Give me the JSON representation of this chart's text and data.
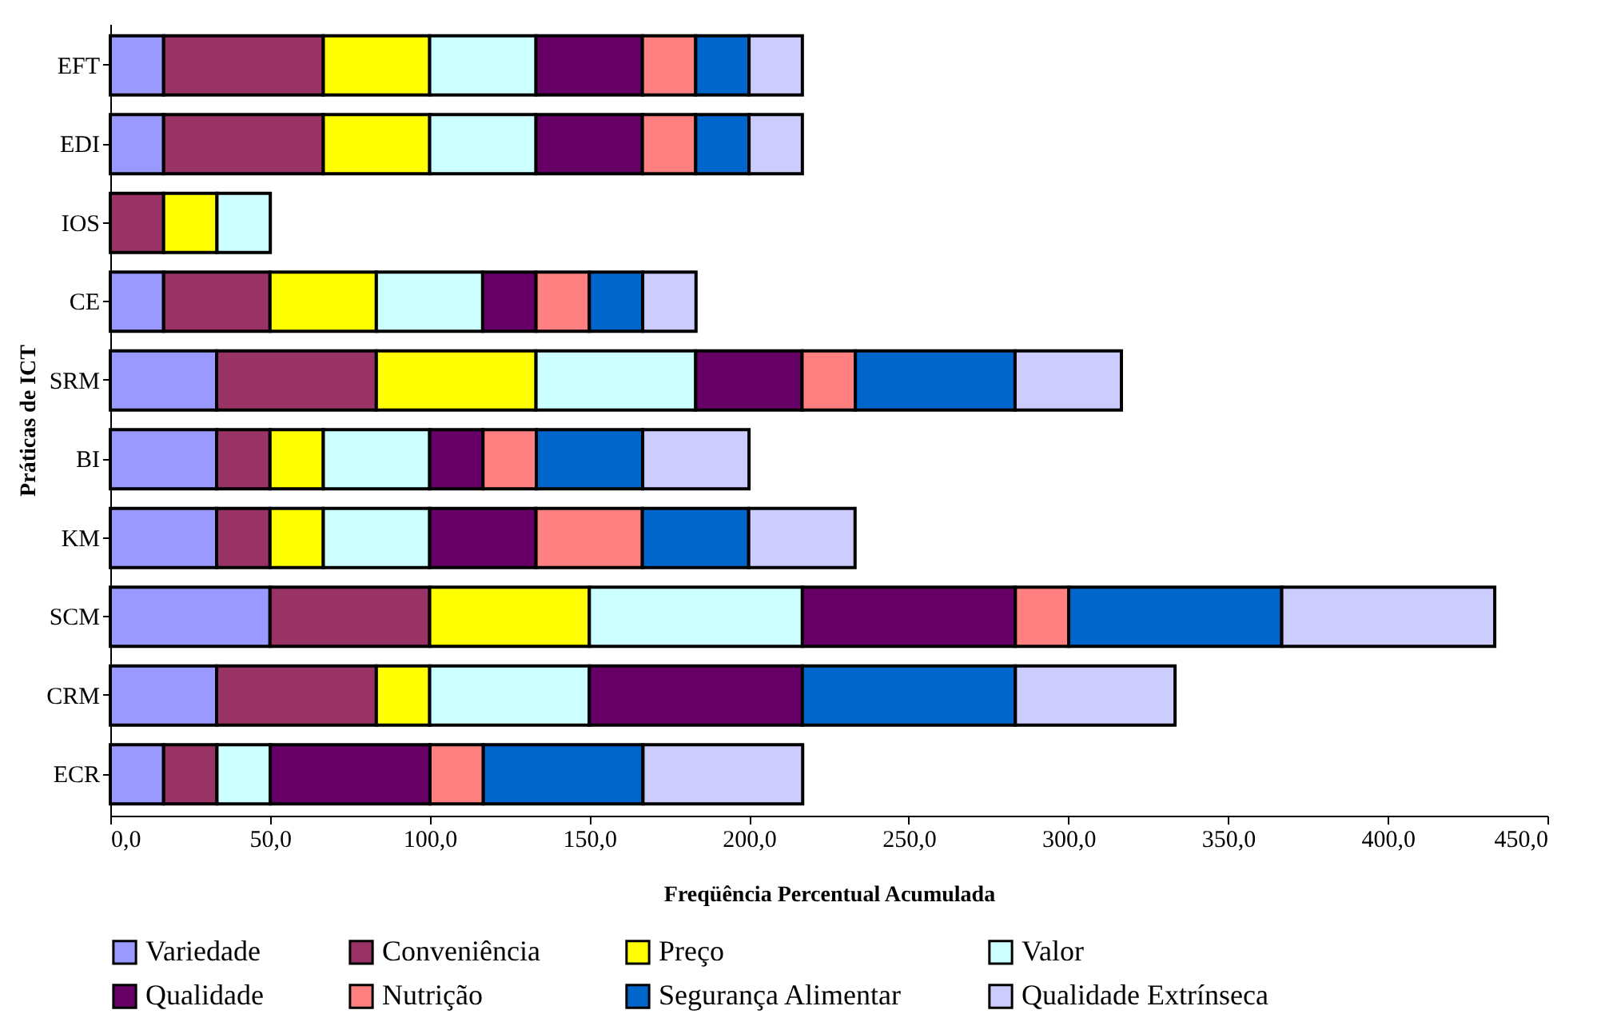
{
  "chart_data": {
    "type": "bar",
    "orientation": "horizontal",
    "stacked": true,
    "xlabel": "Freqüência Percentual Acumulada",
    "ylabel": "Práticas de ICT",
    "categories": [
      "EFT",
      "EDI",
      "IOS",
      "CE",
      "SRM",
      "BI",
      "KM",
      "SCM",
      "CRM",
      "ECR"
    ],
    "series": [
      {
        "name": "Variedade",
        "color": "#9999ff",
        "values": [
          16.7,
          16.7,
          0,
          16.7,
          33.3,
          33.3,
          33.3,
          50,
          33.3,
          16.7
        ]
      },
      {
        "name": "Conveniência",
        "color": "#993366",
        "values": [
          50,
          50,
          16.7,
          33.3,
          50,
          16.7,
          16.7,
          50,
          50,
          16.7
        ]
      },
      {
        "name": "Preço",
        "color": "#ffff00",
        "values": [
          33.3,
          33.3,
          16.7,
          33.3,
          50,
          16.7,
          16.7,
          50,
          16.7,
          0
        ]
      },
      {
        "name": "Valor",
        "color": "#ccffff",
        "values": [
          33.3,
          33.3,
          16.7,
          33.3,
          50,
          33.3,
          33.3,
          66.7,
          50,
          16.7
        ]
      },
      {
        "name": "Qualidade",
        "color": "#660066",
        "values": [
          33.3,
          33.3,
          0,
          16.7,
          33.3,
          16.7,
          33.3,
          66.7,
          66.7,
          50
        ]
      },
      {
        "name": "Nutrição",
        "color": "#ff8080",
        "values": [
          16.7,
          16.7,
          0,
          16.7,
          16.7,
          16.7,
          33.3,
          16.7,
          0,
          16.7
        ]
      },
      {
        "name": "Segurança Alimentar",
        "color": "#0066cc",
        "values": [
          16.7,
          16.7,
          0,
          16.7,
          50,
          33.3,
          33.3,
          66.7,
          66.7,
          50
        ]
      },
      {
        "name": "Qualidade Extrínseca",
        "color": "#ccccff",
        "values": [
          16.7,
          16.7,
          0,
          16.7,
          33.3,
          33.3,
          33.3,
          66.7,
          50,
          50
        ]
      }
    ],
    "xlim": [
      0,
      450
    ],
    "xticks": [
      {
        "value": 0,
        "label": "0,0"
      },
      {
        "value": 50,
        "label": "50,0"
      },
      {
        "value": 100,
        "label": "100,0"
      },
      {
        "value": 150,
        "label": "150,0"
      },
      {
        "value": 200,
        "label": "200,0"
      },
      {
        "value": 250,
        "label": "250,0"
      },
      {
        "value": 300,
        "label": "300,0"
      },
      {
        "value": 350,
        "label": "350,0"
      },
      {
        "value": 400,
        "label": "400,0"
      },
      {
        "value": 450,
        "label": "450,0"
      }
    ],
    "grid": false,
    "legend": "bottom"
  }
}
